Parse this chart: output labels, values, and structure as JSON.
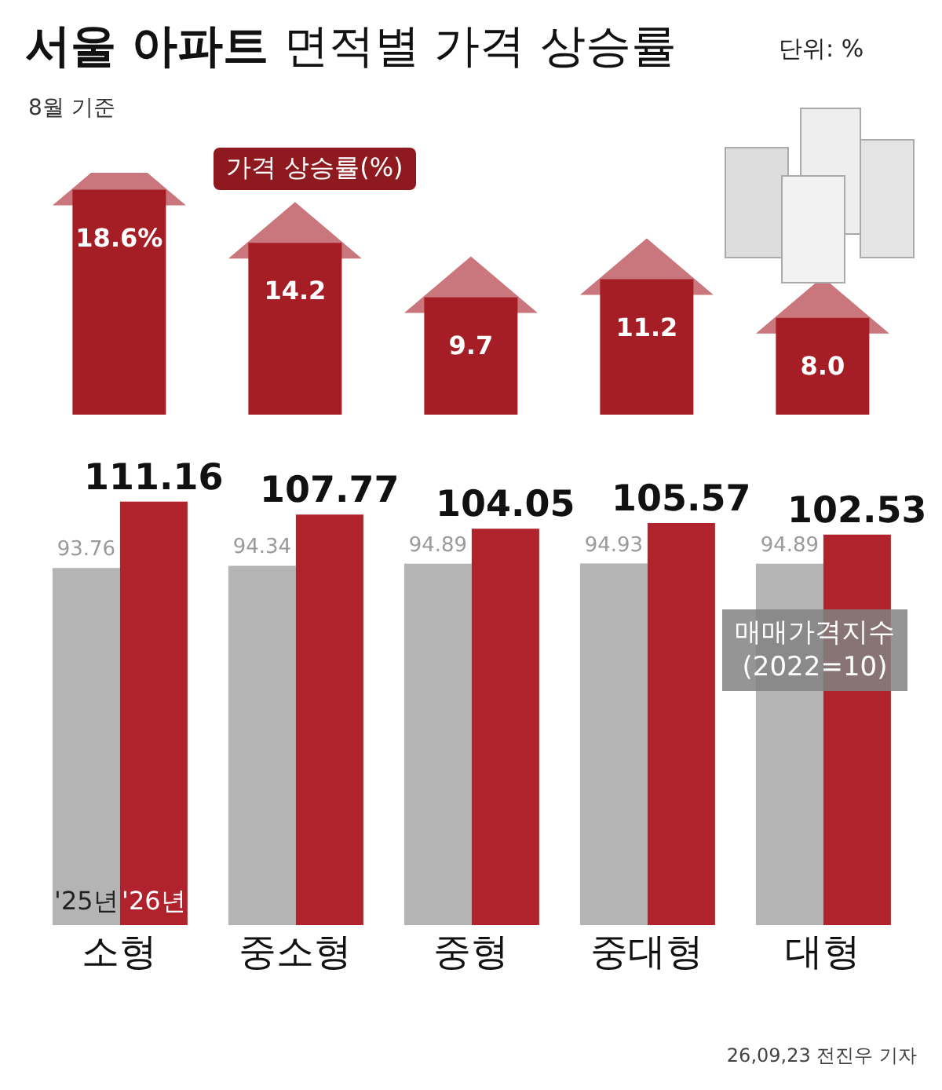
{
  "chart_data": [
    {
      "type": "bar",
      "title": "서울 아파트 면적별 가격 상승률",
      "subtitle": "8월 기준",
      "annotations": [
        "단위: %",
        "가격 상승률(%)"
      ],
      "categories": [
        null,
        null,
        null,
        null,
        null
      ],
      "series": [
        {
          "color": "#a51d25",
          "values": [
            18.6,
            14.2,
            9.7,
            11.2,
            8.0
          ],
          "value_labels": [
            "18.6%",
            "14.2",
            "9.7",
            "11.2",
            "8.0"
          ]
        }
      ],
      "tick_labels": false
    },
    {
      "type": "bar",
      "categories": [
        "소형",
        "중소형",
        "중형",
        "중대형",
        "대형"
      ],
      "series": [
        {
          "name": "'25년",
          "color": "#b4b4b4",
          "values": [
            93.76,
            94.34,
            94.89,
            94.93,
            94.89
          ]
        },
        {
          "name": "'26년",
          "color": "#b0232c",
          "values": [
            111.16,
            107.77,
            104.05,
            105.57,
            102.53
          ]
        }
      ],
      "data_labels": true,
      "tick_labels": "x",
      "annotations": [
        "매매가격지수\n(2022=10)",
        "26,09,23 전진우 기자"
      ]
    }
  ]
}
